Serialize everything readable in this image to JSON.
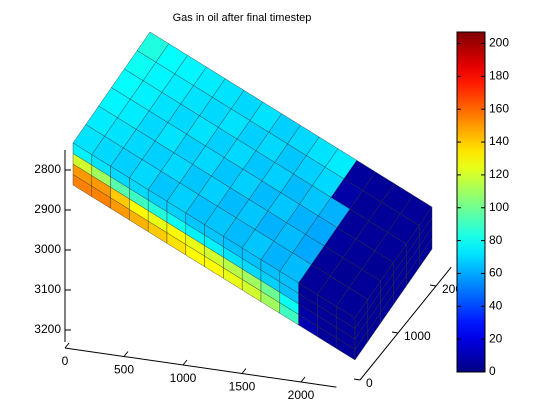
{
  "chart_data": {
    "type": "grid3d",
    "title": "Gas in oil after final timestep",
    "colormap": "jet",
    "clim": [
      0,
      207
    ],
    "cticks": [
      0,
      20,
      40,
      60,
      80,
      100,
      120,
      140,
      160,
      180,
      200
    ],
    "xlim": [
      0,
      2300
    ],
    "xticks": [
      0,
      500,
      1000,
      1500,
      2000
    ],
    "ylim": [
      0,
      2400
    ],
    "yticks": [
      0,
      1000,
      2000
    ],
    "zlim": [
      2750,
      3230
    ],
    "zticks": [
      2800,
      2900,
      3000,
      3100,
      3200
    ],
    "top": [
      [
        72,
        70,
        68,
        70,
        66,
        68,
        65,
        66,
        64,
        66,
        62,
        64,
        5,
        5,
        5
      ],
      [
        74,
        72,
        70,
        68,
        70,
        66,
        68,
        64,
        66,
        62,
        64,
        60,
        5,
        4,
        5
      ],
      [
        76,
        74,
        70,
        72,
        68,
        70,
        66,
        68,
        64,
        66,
        62,
        60,
        6,
        5,
        4
      ],
      [
        78,
        75,
        72,
        70,
        72,
        68,
        70,
        66,
        68,
        64,
        66,
        62,
        5,
        5,
        5
      ],
      [
        80,
        76,
        74,
        72,
        70,
        72,
        68,
        70,
        66,
        68,
        70,
        8,
        5,
        5,
        5
      ],
      [
        84,
        78,
        76,
        74,
        72,
        70,
        72,
        68,
        70,
        72,
        74,
        6,
        5,
        5,
        5
      ]
    ],
    "front": [
      [
        75,
        72,
        70,
        70,
        68,
        68,
        66,
        66,
        65,
        65,
        65,
        65,
        5,
        5,
        5
      ],
      [
        120,
        110,
        95,
        90,
        85,
        80,
        75,
        75,
        72,
        70,
        68,
        65,
        5,
        5,
        5
      ],
      [
        150,
        150,
        140,
        130,
        125,
        130,
        125,
        120,
        115,
        110,
        100,
        80,
        8,
        5,
        5
      ],
      [
        155,
        155,
        150,
        145,
        140,
        135,
        130,
        130,
        125,
        120,
        110,
        90,
        10,
        5,
        5
      ]
    ],
    "end": [
      [
        5,
        5,
        6,
        5
      ],
      [
        5,
        4,
        5,
        5
      ],
      [
        5,
        5,
        5,
        6
      ],
      [
        4,
        5,
        5,
        5
      ],
      [
        5,
        5,
        6,
        5
      ],
      [
        5,
        5,
        5,
        5
      ]
    ]
  }
}
